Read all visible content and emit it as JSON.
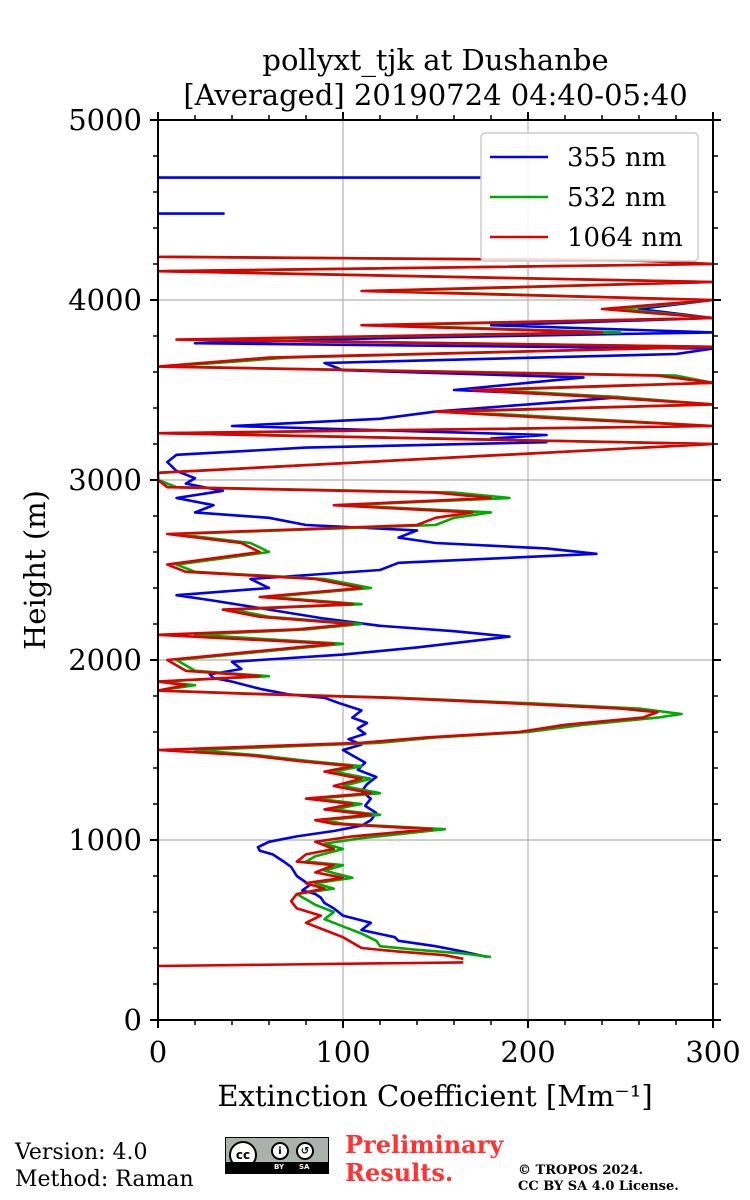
{
  "chart_data": {
    "type": "line",
    "title_line1": "pollyxt_tjk at Dushanbe",
    "title_line2": "[Averaged] 20190724 04:40-05:40",
    "xlabel": "Extinction Coefficient [Mm⁻¹]",
    "ylabel": "Height (m)",
    "xlim": [
      0,
      300
    ],
    "ylim": [
      0,
      5000
    ],
    "xticks": [
      "0",
      "100",
      "200",
      "300"
    ],
    "yticks": [
      "0",
      "1000",
      "2000",
      "3000",
      "4000",
      "5000"
    ],
    "grid": true,
    "legend_position": "top-right",
    "series": [
      {
        "name": "355 nm",
        "color": "#0000ee",
        "points": [
          [
            178,
            350
          ],
          [
            165,
            380
          ],
          [
            150,
            410
          ],
          [
            130,
            440
          ],
          [
            128,
            460
          ],
          [
            110,
            500
          ],
          [
            115,
            540
          ],
          [
            100,
            580
          ],
          [
            95,
            620
          ],
          [
            90,
            650
          ],
          [
            88,
            680
          ],
          [
            85,
            700
          ],
          [
            78,
            720
          ],
          [
            82,
            750
          ],
          [
            75,
            800
          ],
          [
            72,
            850
          ],
          [
            68,
            880
          ],
          [
            62,
            920
          ],
          [
            55,
            940
          ],
          [
            54,
            960
          ],
          [
            60,
            990
          ],
          [
            75,
            1020
          ],
          [
            95,
            1050
          ],
          [
            110,
            1080
          ],
          [
            115,
            1110
          ],
          [
            118,
            1150
          ],
          [
            112,
            1190
          ],
          [
            115,
            1230
          ],
          [
            110,
            1270
          ],
          [
            113,
            1310
          ],
          [
            118,
            1350
          ],
          [
            108,
            1390
          ],
          [
            112,
            1430
          ],
          [
            105,
            1470
          ],
          [
            100,
            1500
          ],
          [
            110,
            1530
          ],
          [
            103,
            1560
          ],
          [
            112,
            1590
          ],
          [
            108,
            1620
          ],
          [
            113,
            1650
          ],
          [
            105,
            1680
          ],
          [
            110,
            1720
          ],
          [
            98,
            1760
          ],
          [
            90,
            1790
          ],
          [
            70,
            1810
          ],
          [
            55,
            1840
          ],
          [
            40,
            1880
          ],
          [
            30,
            1900
          ],
          [
            28,
            1920
          ],
          [
            45,
            1950
          ],
          [
            40,
            1990
          ],
          [
            100,
            2030
          ],
          [
            140,
            2070
          ],
          [
            190,
            2130
          ],
          [
            160,
            2160
          ],
          [
            120,
            2190
          ],
          [
            90,
            2230
          ],
          [
            60,
            2280
          ],
          [
            30,
            2330
          ],
          [
            10,
            2360
          ],
          [
            60,
            2400
          ],
          [
            50,
            2450
          ],
          [
            120,
            2500
          ],
          [
            130,
            2540
          ],
          [
            237,
            2590
          ],
          [
            210,
            2620
          ],
          [
            150,
            2650
          ],
          [
            130,
            2680
          ],
          [
            140,
            2720
          ],
          [
            80,
            2750
          ],
          [
            60,
            2790
          ],
          [
            20,
            2820
          ],
          [
            30,
            2860
          ],
          [
            10,
            2900
          ],
          [
            35,
            2940
          ],
          [
            15,
            2980
          ],
          [
            20,
            3010
          ],
          [
            10,
            3050
          ],
          [
            5,
            3100
          ],
          [
            10,
            3140
          ],
          [
            80,
            3180
          ],
          [
            210,
            3210
          ],
          [
            180,
            3230
          ],
          [
            210,
            3250
          ],
          [
            40,
            3300
          ],
          [
            120,
            3340
          ],
          [
            150,
            3380
          ],
          [
            200,
            3420
          ],
          [
            250,
            3460
          ],
          [
            160,
            3500
          ],
          [
            200,
            3540
          ],
          [
            230,
            3570
          ],
          [
            100,
            3610
          ],
          [
            90,
            3650
          ],
          [
            280,
            3700
          ],
          [
            300,
            3730
          ],
          [
            20,
            3760
          ],
          [
            130,
            3790
          ],
          [
            300,
            3820
          ],
          [
            180,
            3860
          ],
          [
            300,
            3900
          ],
          [
            260,
            3950
          ],
          [
            300,
            4000
          ]
        ],
        "extra_segments": [
          [
            [
              0,
              4680
            ],
            [
              175,
              4680
            ]
          ],
          [
            [
              0,
              4480
            ],
            [
              36,
              4480
            ]
          ]
        ]
      },
      {
        "name": "532 nm",
        "color": "#00aa00",
        "points": [
          [
            180,
            350
          ],
          [
            165,
            370
          ],
          [
            140,
            390
          ],
          [
            120,
            410
          ],
          [
            118,
            440
          ],
          [
            110,
            480
          ],
          [
            100,
            520
          ],
          [
            90,
            560
          ],
          [
            95,
            600
          ],
          [
            85,
            640
          ],
          [
            80,
            670
          ],
          [
            75,
            700
          ],
          [
            95,
            730
          ],
          [
            85,
            760
          ],
          [
            105,
            790
          ],
          [
            90,
            830
          ],
          [
            100,
            860
          ],
          [
            80,
            880
          ],
          [
            85,
            910
          ],
          [
            100,
            950
          ],
          [
            90,
            980
          ],
          [
            110,
            1010
          ],
          [
            155,
            1060
          ],
          [
            100,
            1090
          ],
          [
            90,
            1110
          ],
          [
            120,
            1140
          ],
          [
            95,
            1170
          ],
          [
            110,
            1200
          ],
          [
            85,
            1230
          ],
          [
            120,
            1260
          ],
          [
            100,
            1300
          ],
          [
            115,
            1340
          ],
          [
            95,
            1380
          ],
          [
            110,
            1410
          ],
          [
            80,
            1440
          ],
          [
            55,
            1470
          ],
          [
            20,
            1500
          ],
          [
            120,
            1540
          ],
          [
            150,
            1570
          ],
          [
            200,
            1600
          ],
          [
            230,
            1640
          ],
          [
            270,
            1680
          ],
          [
            283,
            1700
          ],
          [
            260,
            1730
          ],
          [
            200,
            1760
          ],
          [
            130,
            1790
          ],
          [
            60,
            1810
          ],
          [
            0,
            1830
          ],
          [
            20,
            1860
          ],
          [
            0,
            1880
          ],
          [
            60,
            1910
          ],
          [
            20,
            1940
          ],
          [
            10,
            2000
          ],
          [
            60,
            2050
          ],
          [
            100,
            2090
          ],
          [
            20,
            2140
          ],
          [
            80,
            2170
          ],
          [
            110,
            2200
          ],
          [
            60,
            2240
          ],
          [
            40,
            2280
          ],
          [
            110,
            2310
          ],
          [
            60,
            2350
          ],
          [
            115,
            2400
          ],
          [
            90,
            2450
          ],
          [
            20,
            2490
          ],
          [
            10,
            2530
          ],
          [
            60,
            2600
          ],
          [
            50,
            2650
          ],
          [
            10,
            2700
          ],
          [
            150,
            2750
          ],
          [
            160,
            2790
          ],
          [
            180,
            2820
          ],
          [
            100,
            2860
          ],
          [
            190,
            2900
          ],
          [
            160,
            2930
          ],
          [
            10,
            2960
          ],
          [
            0,
            3000
          ],
          [
            0,
            3040
          ],
          [
            300,
            3200
          ],
          [
            5,
            3260
          ],
          [
            300,
            3300
          ],
          [
            230,
            3340
          ],
          [
            160,
            3380
          ],
          [
            300,
            3420
          ],
          [
            250,
            3460
          ],
          [
            180,
            3500
          ],
          [
            300,
            3540
          ],
          [
            280,
            3580
          ],
          [
            5,
            3630
          ],
          [
            70,
            3680
          ],
          [
            300,
            3740
          ],
          [
            20,
            3780
          ],
          [
            250,
            3820
          ],
          [
            120,
            3860
          ],
          [
            300,
            3900
          ],
          [
            250,
            3950
          ],
          [
            300,
            4000
          ],
          [
            120,
            4050
          ],
          [
            300,
            4100
          ],
          [
            5,
            4160
          ],
          [
            300,
            4200
          ],
          [
            265,
            4220
          ],
          [
            5,
            4240
          ]
        ]
      },
      {
        "name": "1064 nm",
        "color": "#dd0000",
        "points": [
          [
            165,
            340
          ],
          [
            155,
            360
          ],
          [
            130,
            380
          ],
          [
            110,
            400
          ],
          [
            105,
            430
          ],
          [
            100,
            460
          ],
          [
            90,
            500
          ],
          [
            80,
            540
          ],
          [
            88,
            580
          ],
          [
            75,
            620
          ],
          [
            72,
            660
          ],
          [
            75,
            700
          ],
          [
            90,
            730
          ],
          [
            80,
            760
          ],
          [
            100,
            790
          ],
          [
            85,
            820
          ],
          [
            95,
            860
          ],
          [
            75,
            880
          ],
          [
            80,
            920
          ],
          [
            95,
            950
          ],
          [
            85,
            990
          ],
          [
            105,
            1020
          ],
          [
            148,
            1060
          ],
          [
            95,
            1090
          ],
          [
            85,
            1110
          ],
          [
            115,
            1140
          ],
          [
            90,
            1170
          ],
          [
            105,
            1200
          ],
          [
            80,
            1230
          ],
          [
            115,
            1260
          ],
          [
            95,
            1300
          ],
          [
            110,
            1340
          ],
          [
            90,
            1380
          ],
          [
            105,
            1410
          ],
          [
            75,
            1440
          ],
          [
            50,
            1470
          ],
          [
            0,
            1500
          ],
          [
            110,
            1540
          ],
          [
            145,
            1570
          ],
          [
            195,
            1600
          ],
          [
            220,
            1640
          ],
          [
            262,
            1680
          ],
          [
            270,
            1710
          ],
          [
            250,
            1730
          ],
          [
            190,
            1760
          ],
          [
            125,
            1790
          ],
          [
            55,
            1810
          ],
          [
            0,
            1830
          ],
          [
            15,
            1860
          ],
          [
            0,
            1880
          ],
          [
            55,
            1910
          ],
          [
            15,
            1940
          ],
          [
            5,
            2000
          ],
          [
            55,
            2050
          ],
          [
            95,
            2090
          ],
          [
            0,
            2140
          ],
          [
            75,
            2170
          ],
          [
            105,
            2200
          ],
          [
            55,
            2240
          ],
          [
            35,
            2280
          ],
          [
            105,
            2310
          ],
          [
            55,
            2350
          ],
          [
            110,
            2400
          ],
          [
            85,
            2450
          ],
          [
            15,
            2490
          ],
          [
            5,
            2530
          ],
          [
            55,
            2600
          ],
          [
            45,
            2650
          ],
          [
            5,
            2700
          ],
          [
            140,
            2750
          ],
          [
            150,
            2790
          ],
          [
            170,
            2820
          ],
          [
            95,
            2860
          ],
          [
            180,
            2900
          ],
          [
            150,
            2930
          ],
          [
            5,
            2960
          ],
          [
            0,
            3000
          ],
          [
            0,
            3040
          ],
          [
            300,
            3200
          ],
          [
            0,
            3260
          ],
          [
            300,
            3300
          ],
          [
            220,
            3340
          ],
          [
            150,
            3380
          ],
          [
            300,
            3420
          ],
          [
            240,
            3460
          ],
          [
            170,
            3500
          ],
          [
            300,
            3540
          ],
          [
            270,
            3580
          ],
          [
            0,
            3630
          ],
          [
            60,
            3680
          ],
          [
            300,
            3740
          ],
          [
            10,
            3780
          ],
          [
            240,
            3820
          ],
          [
            110,
            3860
          ],
          [
            300,
            3900
          ],
          [
            240,
            3950
          ],
          [
            300,
            4000
          ],
          [
            110,
            4050
          ],
          [
            300,
            4100
          ],
          [
            0,
            4160
          ],
          [
            300,
            4200
          ],
          [
            255,
            4220
          ],
          [
            0,
            4240
          ]
        ],
        "extra_segments": [
          [
            [
              0,
              300
            ],
            [
              165,
              320
            ]
          ]
        ]
      }
    ]
  },
  "footer": {
    "version": "Version: 4.0",
    "method": "Method: Raman",
    "preliminary_line1": "Preliminary",
    "preliminary_line2": "Results.",
    "copyright_line1": "© TROPOS 2024.",
    "copyright_line2": "CC BY SA 4.0 License.",
    "license_badge": {
      "cc": "cc",
      "by": "BY",
      "sa": "SA"
    }
  }
}
